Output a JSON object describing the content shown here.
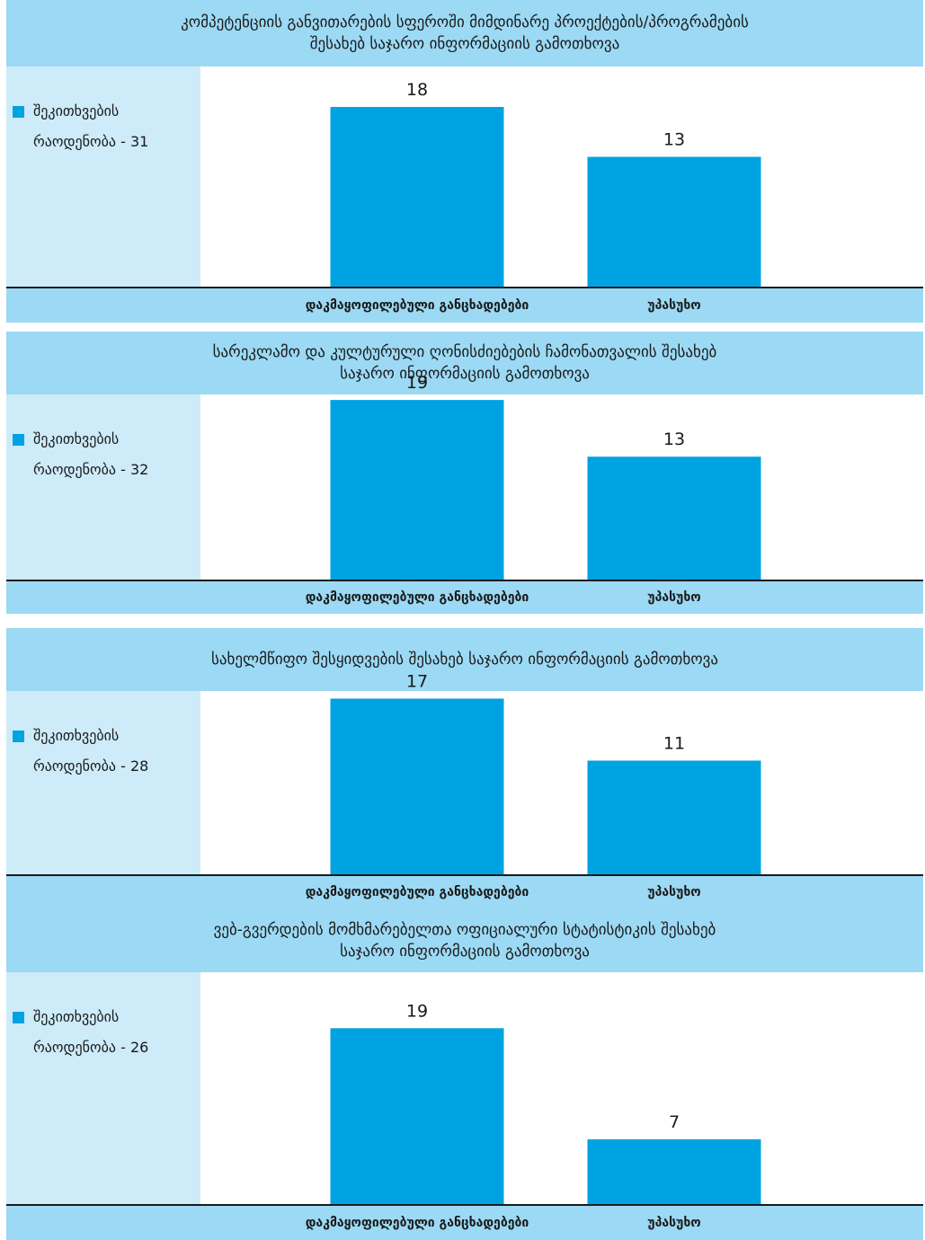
{
  "chart_data": [
    {
      "type": "bar",
      "title": "კომპეტენციის განვითარების სფეროში მიმდინარე პროექტების/პროგრამების შესახებ საჯარო ინფორმაციის გამოთხოვა",
      "title_lines": [
        "კომპეტენციის განვითარების სფეროში მიმდინარე პროექტების/პროგრამების",
        "შესახებ საჯარო ინფორმაციის გამოთხოვა"
      ],
      "legend_lines": [
        "შეკითხვების",
        "რაოდენობა - 31"
      ],
      "categories": [
        "დაკმაყოფილებული განცხადებები",
        "უპასუხო"
      ],
      "values": [
        18,
        13
      ],
      "ylim": [
        0,
        20
      ],
      "bar_color": "#00a3e2",
      "grid": false,
      "legend_position": "left"
    },
    {
      "type": "bar",
      "title": "სარეკლამო და კულტურული ღონისძიებების ჩამონათვალის შესახებ საჯარო ინფორმაციის გამოთხოვა",
      "title_lines": [
        "სარეკლამო და კულტურული ღონისძიებების  ჩამონათვალის შესახებ",
        "საჯარო ინფორმაციის გამოთხოვა"
      ],
      "legend_lines": [
        "შეკითხვების",
        "რაოდენობა - 32"
      ],
      "categories": [
        "დაკმაყოფილებული განცხადებები",
        "უპასუხო"
      ],
      "values": [
        19,
        13
      ],
      "ylim": [
        0,
        20
      ],
      "bar_color": "#00a3e2",
      "grid": false,
      "legend_position": "left"
    },
    {
      "type": "bar",
      "title": "სახელმწიფო შესყიდვების შესახებ საჯარო ინფორმაციის გამოთხოვა",
      "title_lines": [
        "სახელმწიფო შესყიდვების შესახებ საჯარო ინფორმაციის გამოთხოვა"
      ],
      "legend_lines": [
        "შეკითხვების",
        "რაოდენობა - 28"
      ],
      "categories": [
        "დაკმაყოფილებული განცხადებები",
        "უპასუხო"
      ],
      "values": [
        17,
        11
      ],
      "ylim": [
        0,
        20
      ],
      "bar_color": "#00a3e2",
      "grid": false,
      "legend_position": "left"
    },
    {
      "type": "bar",
      "title": "ვებ-გვერდების მომხმარებელთა ოფიციალური სტატისტიკის შესახებ საჯარო ინფორმაციის გამოთხოვა",
      "title_lines": [
        "ვებ-გვერდების  მომხმარებელთა ოფიციალური სტატისტიკის შესახებ",
        "საჯარო ინფორმაციის გამოთხოვა"
      ],
      "legend_lines": [
        "შეკითხვების",
        "რაოდენობა - 26"
      ],
      "categories": [
        "დაკმაყოფილებული განცხადებები",
        "უპასუხო"
      ],
      "values": [
        19,
        7
      ],
      "ylim": [
        0,
        20
      ],
      "bar_color": "#00a3e2",
      "grid": false,
      "legend_position": "left"
    }
  ]
}
